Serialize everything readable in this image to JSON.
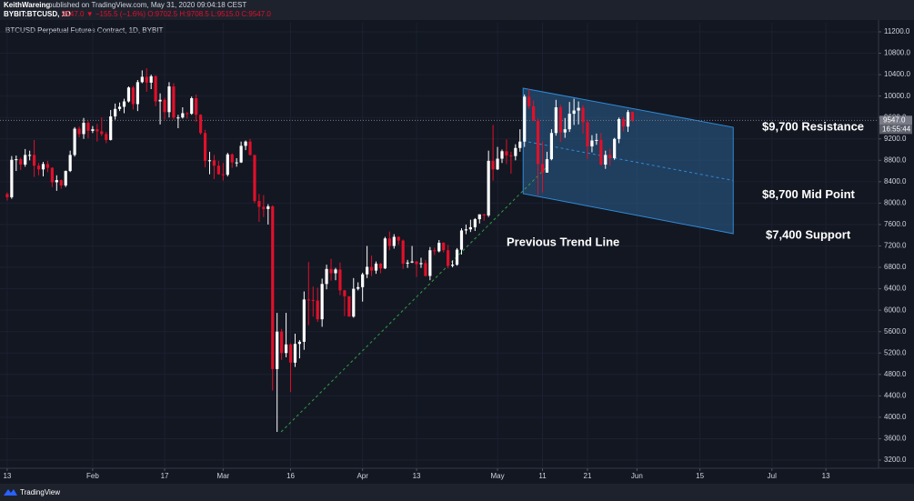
{
  "header": {
    "publisher": "KeithWareing",
    "published": "published on TradingView.com, May 31, 2020 09:04:18 CEST",
    "symbol": "BYBIT:BTCUSD, 1D",
    "quote": "9547.0 ▼ −155.5 (−1.6%) O:9702.5 H:9708.5 L:9515.0 C:9547.0"
  },
  "footer": "TradingView",
  "chart_data": {
    "type": "candlestick",
    "title": "BTCUSD Perpetual Futures Contract, 1D, BYBIT",
    "up_color": "#ffffff",
    "down_color": "#e0102a",
    "candles": [
      [
        8170,
        8200,
        8050,
        8110
      ],
      [
        8110,
        8880,
        8080,
        8810
      ],
      [
        8810,
        8890,
        8600,
        8820
      ],
      [
        8820,
        8850,
        8620,
        8720
      ],
      [
        8720,
        9010,
        8680,
        8900
      ],
      [
        8900,
        8980,
        8800,
        8900
      ],
      [
        8900,
        9180,
        8490,
        8700
      ],
      [
        8700,
        8750,
        8520,
        8630
      ],
      [
        8630,
        8770,
        8500,
        8730
      ],
      [
        8730,
        8790,
        8580,
        8660
      ],
      [
        8660,
        8670,
        8300,
        8390
      ],
      [
        8390,
        8520,
        8230,
        8430
      ],
      [
        8430,
        8440,
        8270,
        8330
      ],
      [
        8330,
        8610,
        8300,
        8600
      ],
      [
        8600,
        8980,
        8580,
        8900
      ],
      [
        8900,
        9420,
        8870,
        9390
      ],
      [
        9390,
        9430,
        9230,
        9290
      ],
      [
        9290,
        9590,
        9200,
        9500
      ],
      [
        9500,
        9530,
        9210,
        9350
      ],
      [
        9350,
        9440,
        9310,
        9380
      ],
      [
        9380,
        9480,
        9150,
        9340
      ],
      [
        9340,
        9600,
        9250,
        9290
      ],
      [
        9290,
        9330,
        9120,
        9180
      ],
      [
        9180,
        9740,
        9170,
        9620
      ],
      [
        9620,
        9860,
        9560,
        9760
      ],
      [
        9760,
        9880,
        9720,
        9800
      ],
      [
        9800,
        9950,
        9680,
        9900
      ],
      [
        9900,
        10180,
        9880,
        10160
      ],
      [
        10160,
        10190,
        9750,
        9850
      ],
      [
        9850,
        10300,
        9720,
        10260
      ],
      [
        10260,
        10480,
        10240,
        10360
      ],
      [
        10360,
        10520,
        10080,
        10250
      ],
      [
        10250,
        10400,
        10130,
        10370
      ],
      [
        10370,
        10390,
        9810,
        9900
      ],
      [
        9900,
        10050,
        9470,
        9930
      ],
      [
        9930,
        9970,
        9560,
        9700
      ],
      [
        9700,
        10260,
        9600,
        10180
      ],
      [
        10180,
        10240,
        9560,
        9600
      ],
      [
        9600,
        9650,
        9400,
        9600
      ],
      [
        9600,
        9790,
        9580,
        9680
      ],
      [
        9680,
        9700,
        9580,
        9670
      ],
      [
        9670,
        9990,
        9650,
        9960
      ],
      [
        9960,
        10030,
        9520,
        9650
      ],
      [
        9650,
        9660,
        9280,
        9310
      ],
      [
        9310,
        9370,
        8670,
        8790
      ],
      [
        8790,
        8960,
        8540,
        8800
      ],
      [
        8800,
        8900,
        8450,
        8700
      ],
      [
        8700,
        8790,
        8530,
        8540
      ],
      [
        8540,
        8750,
        8420,
        8530
      ],
      [
        8530,
        8940,
        8500,
        8910
      ],
      [
        8910,
        8930,
        8660,
        8760
      ],
      [
        8760,
        8840,
        8680,
        8760
      ],
      [
        8760,
        9150,
        8750,
        9070
      ],
      [
        9070,
        9170,
        8990,
        9150
      ],
      [
        9150,
        9200,
        8890,
        8900
      ],
      [
        8900,
        8900,
        8000,
        8040
      ],
      [
        8040,
        8170,
        7650,
        7930
      ],
      [
        7930,
        8150,
        7740,
        7890
      ],
      [
        7890,
        7980,
        7600,
        7940
      ],
      [
        7940,
        7960,
        4500,
        4900
      ],
      [
        4900,
        5950,
        3727,
        5600
      ],
      [
        5600,
        5650,
        5070,
        5200
      ],
      [
        5200,
        5950,
        5120,
        5360
      ],
      [
        5360,
        5380,
        4470,
        5020
      ],
      [
        5020,
        5560,
        4940,
        5370
      ],
      [
        5370,
        5440,
        5100,
        5410
      ],
      [
        5410,
        6350,
        5260,
        6200
      ],
      [
        6200,
        6900,
        5720,
        6190
      ],
      [
        6190,
        6440,
        5880,
        6180
      ],
      [
        6180,
        6420,
        5780,
        5830
      ],
      [
        5830,
        6590,
        5690,
        6490
      ],
      [
        6490,
        6850,
        6390,
        6770
      ],
      [
        6770,
        6960,
        6550,
        6690
      ],
      [
        6690,
        6790,
        6560,
        6760
      ],
      [
        6760,
        6890,
        6280,
        6370
      ],
      [
        6370,
        6380,
        5890,
        6260
      ],
      [
        6260,
        6260,
        5880,
        5880
      ],
      [
        5880,
        6600,
        5860,
        6400
      ],
      [
        6400,
        6520,
        6370,
        6430
      ],
      [
        6430,
        6700,
        6160,
        6670
      ],
      [
        6670,
        7200,
        6600,
        6810
      ],
      [
        6810,
        7020,
        6640,
        6740
      ],
      [
        6740,
        6910,
        6680,
        6870
      ],
      [
        6870,
        6880,
        6690,
        6780
      ],
      [
        6780,
        7370,
        6770,
        7340
      ],
      [
        7340,
        7470,
        7120,
        7200
      ],
      [
        7200,
        7420,
        7150,
        7370
      ],
      [
        7370,
        7380,
        7220,
        7300
      ],
      [
        7300,
        7320,
        6770,
        6870
      ],
      [
        6870,
        6940,
        6790,
        6890
      ],
      [
        6890,
        7200,
        6880,
        6910
      ],
      [
        6910,
        6920,
        6620,
        6860
      ],
      [
        6860,
        6980,
        6790,
        6880
      ],
      [
        6880,
        6940,
        6630,
        6640
      ],
      [
        6640,
        7180,
        6560,
        7120
      ],
      [
        7120,
        7170,
        7030,
        7100
      ],
      [
        7100,
        7310,
        7080,
        7260
      ],
      [
        7260,
        7270,
        7080,
        7120
      ],
      [
        7120,
        7220,
        6780,
        6830
      ],
      [
        6830,
        6930,
        6800,
        6850
      ],
      [
        6850,
        7160,
        6830,
        7130
      ],
      [
        7130,
        7530,
        7040,
        7490
      ],
      [
        7490,
        7600,
        7420,
        7510
      ],
      [
        7510,
        7690,
        7460,
        7550
      ],
      [
        7550,
        7720,
        7480,
        7700
      ],
      [
        7700,
        7790,
        7620,
        7790
      ],
      [
        7790,
        7800,
        7670,
        7770
      ],
      [
        7770,
        8980,
        7740,
        8790
      ],
      [
        8790,
        9460,
        8420,
        8630
      ],
      [
        8630,
        9050,
        8620,
        8830
      ],
      [
        8830,
        9000,
        8750,
        8970
      ],
      [
        8970,
        9190,
        8730,
        8890
      ],
      [
        8890,
        8960,
        8550,
        8880
      ],
      [
        8880,
        9100,
        8800,
        9030
      ],
      [
        9030,
        9380,
        8960,
        9150
      ],
      [
        9150,
        10030,
        9050,
        9990
      ],
      [
        9990,
        10130,
        9760,
        9810
      ],
      [
        9810,
        9920,
        9530,
        9540
      ],
      [
        9540,
        9580,
        8150,
        8730
      ],
      [
        8730,
        9150,
        8200,
        8570
      ],
      [
        8570,
        8960,
        8570,
        8820
      ],
      [
        8820,
        9380,
        8800,
        9310
      ],
      [
        9310,
        9930,
        9260,
        9790
      ],
      [
        9790,
        9840,
        9140,
        9320
      ],
      [
        9320,
        9590,
        9220,
        9380
      ],
      [
        9380,
        9890,
        9330,
        9670
      ],
      [
        9670,
        9950,
        9460,
        9730
      ],
      [
        9730,
        9900,
        9470,
        9780
      ],
      [
        9780,
        9830,
        9300,
        9510
      ],
      [
        9510,
        9560,
        8820,
        9060
      ],
      [
        9060,
        9270,
        8950,
        9170
      ],
      [
        9170,
        9300,
        9090,
        9180
      ],
      [
        9180,
        9310,
        8700,
        8720
      ],
      [
        8720,
        8980,
        8640,
        8900
      ],
      [
        8900,
        9020,
        8700,
        8840
      ],
      [
        8840,
        9220,
        8810,
        9200
      ],
      [
        9200,
        9600,
        9120,
        9570
      ],
      [
        9570,
        9610,
        9340,
        9430
      ],
      [
        9430,
        9740,
        9330,
        9700
      ],
      [
        9702.5,
        9708.5,
        9515,
        9547
      ]
    ],
    "xlim": [
      -1.6,
      193.7
    ],
    "xticks": [
      {
        "value": 0,
        "label": "13"
      },
      {
        "value": 19,
        "label": "Feb"
      },
      {
        "value": 35,
        "label": "17"
      },
      {
        "value": 48,
        "label": "Mar"
      },
      {
        "value": 63,
        "label": "16"
      },
      {
        "value": 79,
        "label": "Apr"
      },
      {
        "value": 91,
        "label": "13"
      },
      {
        "value": 109,
        "label": "May"
      },
      {
        "value": 119,
        "label": "11"
      },
      {
        "value": 129,
        "label": "21"
      },
      {
        "value": 140,
        "label": "Jun"
      },
      {
        "value": 154,
        "label": "15"
      },
      {
        "value": 170,
        "label": "Jul"
      },
      {
        "value": 182,
        "label": "13"
      }
    ],
    "ylim": [
      3047,
      11370
    ],
    "yticks": [
      {
        "value": 3200,
        "label": "3200.0"
      },
      {
        "value": 3600,
        "label": "3600.0"
      },
      {
        "value": 4000,
        "label": "4000.0"
      },
      {
        "value": 4400,
        "label": "4400.0"
      },
      {
        "value": 4800,
        "label": "4800.0"
      },
      {
        "value": 5200,
        "label": "5200.0"
      },
      {
        "value": 5600,
        "label": "5600.0"
      },
      {
        "value": 6000,
        "label": "6000.0"
      },
      {
        "value": 6400,
        "label": "6400.0"
      },
      {
        "value": 6800,
        "label": "6800.0"
      },
      {
        "value": 7200,
        "label": "7200.0"
      },
      {
        "value": 7600,
        "label": "7600.0"
      },
      {
        "value": 8000,
        "label": "8000.0"
      },
      {
        "value": 8400,
        "label": "8400.0"
      },
      {
        "value": 8800,
        "label": "8800.0"
      },
      {
        "value": 9200,
        "label": "9200.0"
      },
      {
        "value": 9600,
        "label": "9600.0"
      },
      {
        "value": 10000,
        "label": "10000.0"
      },
      {
        "value": 10400,
        "label": "10400.0"
      },
      {
        "value": 10800,
        "label": "10800.0"
      },
      {
        "value": 11200,
        "label": "11200.0"
      }
    ],
    "last_price": {
      "value": 9547,
      "label": "9547.0"
    },
    "countdown": "16:55:44",
    "channel": {
      "x": [
        114.7,
        161.4
      ],
      "upper": [
        10147,
        9417
      ],
      "lower": [
        8177,
        7430
      ],
      "color": "#2b5f8f"
    },
    "trend_line": {
      "x": [
        60.9,
        119.7
      ],
      "y": [
        3727,
        8652
      ],
      "color": "#2ea043"
    },
    "annotations": [
      "$9,700 Resistance",
      "$8,700 Mid Point",
      "$7,400 Support",
      "Previous Trend Line"
    ]
  }
}
